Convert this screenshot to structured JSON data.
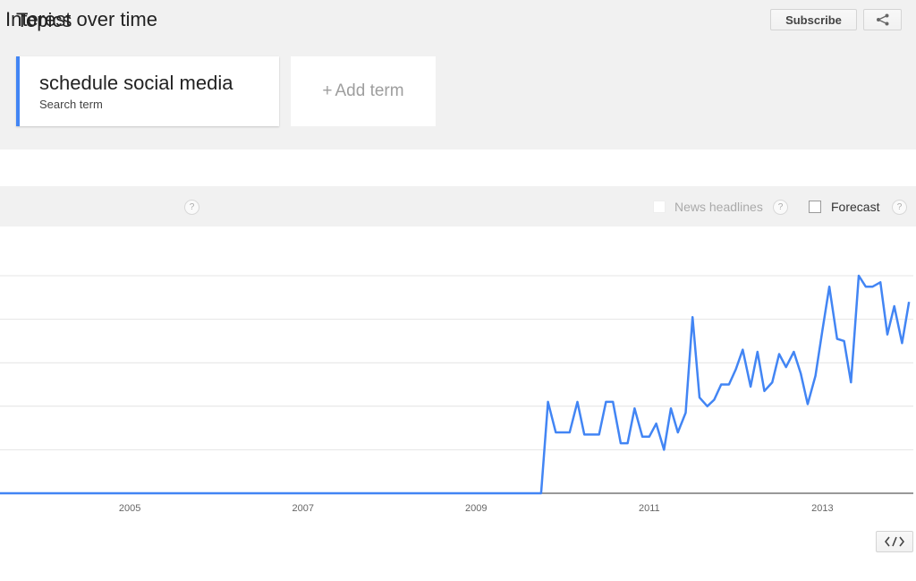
{
  "header": {
    "title": "Topics",
    "subscribe_label": "Subscribe",
    "share_icon": "share-icon"
  },
  "terms": [
    {
      "name": "schedule social media",
      "type": "Search term",
      "color": "#4285f4"
    }
  ],
  "add_term": {
    "plus": "+",
    "label": "Add term"
  },
  "interest_over_time": {
    "title": "Interest over time",
    "help": "?",
    "news_headlines_label": "News headlines",
    "forecast_label": "Forecast",
    "news_headlines_checked": false,
    "forecast_checked": false
  },
  "chart_data": {
    "type": "line",
    "x_ticks": [
      "2005",
      "2007",
      "2009",
      "2011",
      "2013"
    ],
    "xlim": [
      2004.0,
      2014.55
    ],
    "ylim": [
      0,
      100
    ],
    "grid": true,
    "series": [
      {
        "color": "#4285f4",
        "points": [
          [
            2004.0,
            0
          ],
          [
            2010.25,
            0
          ],
          [
            2010.33,
            42
          ],
          [
            2010.42,
            28
          ],
          [
            2010.5,
            28
          ],
          [
            2010.58,
            28
          ],
          [
            2010.67,
            42
          ],
          [
            2010.75,
            27
          ],
          [
            2010.83,
            27
          ],
          [
            2010.92,
            27
          ],
          [
            2011.0,
            42
          ],
          [
            2011.08,
            42
          ],
          [
            2011.17,
            23
          ],
          [
            2011.25,
            23
          ],
          [
            2011.33,
            39
          ],
          [
            2011.42,
            26
          ],
          [
            2011.5,
            26
          ],
          [
            2011.58,
            32
          ],
          [
            2011.67,
            20
          ],
          [
            2011.75,
            39
          ],
          [
            2011.83,
            28
          ],
          [
            2011.92,
            37
          ],
          [
            2012.0,
            81
          ],
          [
            2012.08,
            44
          ],
          [
            2012.17,
            40
          ],
          [
            2012.25,
            43
          ],
          [
            2012.33,
            50
          ],
          [
            2012.42,
            50
          ],
          [
            2012.5,
            57
          ],
          [
            2012.58,
            66
          ],
          [
            2012.67,
            49
          ],
          [
            2012.75,
            65
          ],
          [
            2012.83,
            47
          ],
          [
            2012.92,
            51
          ],
          [
            2013.0,
            64
          ],
          [
            2013.08,
            58
          ],
          [
            2013.17,
            65
          ],
          [
            2013.25,
            55
          ],
          [
            2013.33,
            41
          ],
          [
            2013.42,
            54
          ],
          [
            2013.5,
            75
          ],
          [
            2013.58,
            95
          ],
          [
            2013.67,
            71
          ],
          [
            2013.75,
            70
          ],
          [
            2013.83,
            51
          ],
          [
            2013.92,
            100
          ],
          [
            2014.0,
            95
          ],
          [
            2014.08,
            95
          ],
          [
            2014.17,
            97
          ],
          [
            2014.25,
            73
          ],
          [
            2014.33,
            86
          ],
          [
            2014.42,
            69
          ],
          [
            2014.5,
            88
          ]
        ]
      }
    ]
  }
}
